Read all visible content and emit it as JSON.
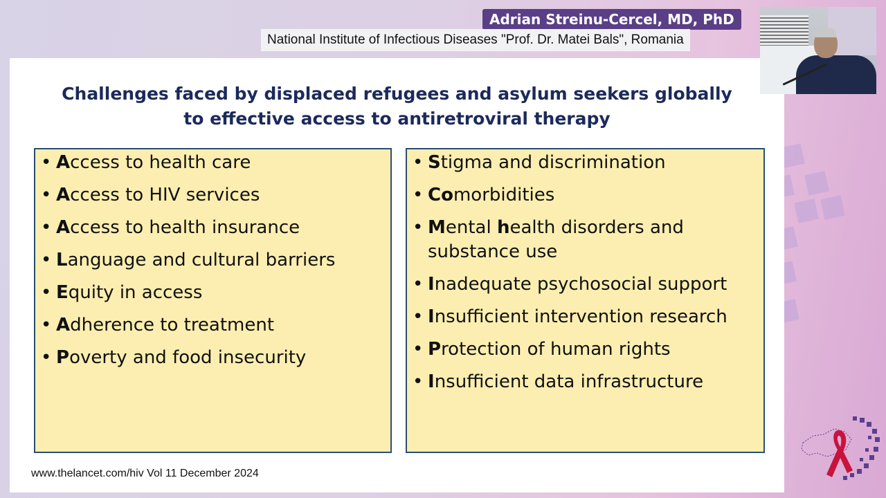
{
  "speaker": {
    "name": "Adrian Streinu-Cercel, MD, PhD",
    "affiliation": "National Institute of Infectious Diseases \"Prof. Dr. Matei Bals\", Romania"
  },
  "slide": {
    "title_line1": "Challenges faced by displaced refugees and asylum seekers globally",
    "title_line2": "to effective access to antiretroviral therapy",
    "left_items": [
      {
        "lead": "A",
        "rest": "ccess to health care"
      },
      {
        "lead": "A",
        "rest": "ccess to HIV services"
      },
      {
        "lead": "A",
        "rest": "ccess to health insurance"
      },
      {
        "lead": "L",
        "rest": "anguage and cultural barriers"
      },
      {
        "lead": "E",
        "rest": "quity in access"
      },
      {
        "lead": "A",
        "rest": "dherence to treatment"
      },
      {
        "lead": "P",
        "rest": "overty and food insecurity"
      }
    ],
    "right_items": [
      {
        "lead": "S",
        "rest": "tigma and discrimination"
      },
      {
        "lead": "Co",
        "rest": "morbidities"
      },
      {
        "lead": "M",
        "rest": "ental ",
        "lead2": "h",
        "rest2": "ealth disorders and substance use"
      },
      {
        "lead": "I",
        "rest": "nadequate psychosocial support"
      },
      {
        "lead": "I",
        "rest": "nsufficient intervention research"
      },
      {
        "lead": "P",
        "rest": "rotection of human rights"
      },
      {
        "lead": "I",
        "rest": "nsufficient data infrastructure"
      }
    ],
    "footer": "www.thelancet.com/hiv Vol 11 December 2024"
  },
  "colors": {
    "title": "#1b2a5a",
    "box_fill": "#fbeeb0",
    "box_border": "#2a4d73",
    "name_badge": "#5a3f86",
    "ribbon": "#c8133c"
  },
  "icons": [
    "speaker-video-feed",
    "europe-map-ribbon-logo"
  ]
}
